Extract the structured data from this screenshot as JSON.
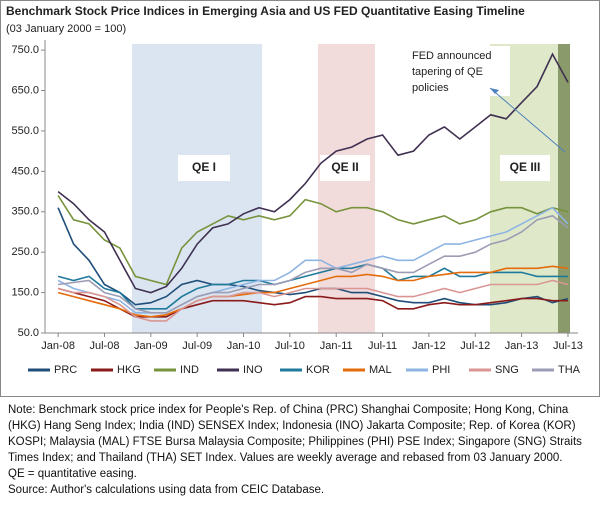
{
  "chart_data": {
    "type": "line",
    "title": "Benchmark Stock Price Indices in Emerging Asia and US FED Quantitative Easing Timeline",
    "subtitle": "(03 January 2000 = 100)",
    "categories": [
      "Jan-08",
      null,
      null,
      "Jul-08",
      null,
      null,
      "Jan-09",
      null,
      null,
      "Jul-09",
      null,
      null,
      "Jan-10",
      null,
      null,
      "Jul-10",
      null,
      null,
      "Jan-11",
      null,
      null,
      "Jul-11",
      null,
      null,
      "Jan-12",
      null,
      null,
      "Jul-12",
      null,
      null,
      "Jan-13",
      null,
      null,
      "Jul-13"
    ],
    "ylim": [
      50,
      775
    ],
    "yticks": [
      {
        "value": 50,
        "label": "50.0"
      },
      {
        "value": 150,
        "label": "150.0"
      },
      {
        "value": 250,
        "label": "250.0"
      },
      {
        "value": 350,
        "label": "350.0"
      },
      {
        "value": 450,
        "label": "450.0"
      },
      {
        "value": 550,
        "label": "550.0"
      },
      {
        "value": 650,
        "label": "650.0"
      },
      {
        "value": 750,
        "label": "750.0"
      }
    ],
    "annotations": [
      "QE I",
      "QE II",
      "QE III",
      "FED announced",
      "tapering of QE",
      "policies"
    ],
    "series": [
      {
        "name": "PRC",
        "color": "#1f4e79",
        "values": [
          360,
          270,
          230,
          170,
          150,
          120,
          125,
          140,
          170,
          180,
          170,
          170,
          165,
          155,
          150,
          145,
          150,
          160,
          160,
          150,
          150,
          140,
          130,
          125,
          125,
          135,
          125,
          120,
          120,
          125,
          135,
          140,
          125,
          135
        ]
      },
      {
        "name": "HKG",
        "color": "#8b1a1a",
        "values": [
          160,
          150,
          140,
          130,
          110,
          90,
          90,
          90,
          110,
          120,
          130,
          130,
          130,
          125,
          120,
          125,
          140,
          140,
          135,
          135,
          135,
          130,
          110,
          110,
          120,
          125,
          120,
          120,
          125,
          130,
          135,
          135,
          130,
          130
        ]
      },
      {
        "name": "IND",
        "color": "#77933c",
        "values": [
          390,
          330,
          320,
          280,
          260,
          190,
          180,
          170,
          260,
          300,
          320,
          340,
          330,
          340,
          330,
          340,
          380,
          370,
          350,
          360,
          360,
          350,
          330,
          320,
          330,
          340,
          320,
          330,
          350,
          360,
          360,
          345,
          360,
          350
        ]
      },
      {
        "name": "INO",
        "color": "#403152",
        "values": [
          400,
          370,
          330,
          300,
          230,
          160,
          150,
          165,
          210,
          270,
          310,
          320,
          345,
          360,
          350,
          380,
          420,
          470,
          500,
          510,
          530,
          540,
          490,
          500,
          540,
          560,
          530,
          560,
          590,
          580,
          620,
          660,
          740,
          670
        ]
      },
      {
        "name": "KOR",
        "color": "#1f7a9c",
        "values": [
          190,
          180,
          190,
          160,
          150,
          110,
          110,
          110,
          140,
          160,
          170,
          170,
          180,
          180,
          170,
          180,
          190,
          200,
          210,
          210,
          220,
          210,
          180,
          190,
          190,
          210,
          190,
          190,
          200,
          200,
          200,
          190,
          190,
          190
        ]
      },
      {
        "name": "MAL",
        "color": "#e46c0a",
        "values": [
          150,
          140,
          130,
          120,
          110,
          95,
          90,
          95,
          110,
          130,
          140,
          140,
          145,
          150,
          150,
          160,
          170,
          180,
          190,
          190,
          195,
          190,
          180,
          180,
          190,
          195,
          200,
          200,
          200,
          210,
          210,
          210,
          215,
          210
        ]
      },
      {
        "name": "PHI",
        "color": "#8eb4e3",
        "values": [
          180,
          160,
          150,
          140,
          130,
          100,
          100,
          100,
          120,
          140,
          150,
          160,
          170,
          180,
          180,
          200,
          230,
          230,
          210,
          220,
          230,
          240,
          230,
          230,
          250,
          270,
          270,
          280,
          290,
          300,
          320,
          340,
          360,
          320
        ]
      },
      {
        "name": "SNG",
        "color": "#d99694",
        "values": [
          160,
          150,
          150,
          140,
          120,
          90,
          80,
          80,
          110,
          130,
          140,
          140,
          150,
          150,
          140,
          150,
          160,
          160,
          160,
          160,
          160,
          150,
          140,
          140,
          150,
          160,
          150,
          160,
          170,
          170,
          170,
          170,
          180,
          170
        ]
      },
      {
        "name": "THA",
        "color": "#9c9cb4",
        "values": [
          170,
          175,
          180,
          150,
          140,
          110,
          100,
          100,
          120,
          140,
          150,
          150,
          160,
          170,
          170,
          180,
          200,
          210,
          210,
          200,
          220,
          210,
          200,
          200,
          220,
          240,
          240,
          250,
          270,
          280,
          300,
          330,
          340,
          310
        ]
      }
    ],
    "note": "Note: Benchmark stock price index for People's Rep. of China (PRC) Shanghai Composite; Hong Kong, China (HKG) Hang Seng Index; India (IND) SENSEX Index; Indonesia (INO) Jakarta Composite; Rep. of Korea (KOR) KOSPI; Malaysia (MAL) FTSE Bursa Malaysia Composite; Philippines (PHI) PSE Index; Singapore (SNG) Straits Times Index; and Thailand (THA) SET Index. Values are weekly average and rebased from 03 January 2000.",
    "note_qe": "QE = quantitative easing.",
    "source": "Source: Author's calculations using data from CEIC Database."
  }
}
